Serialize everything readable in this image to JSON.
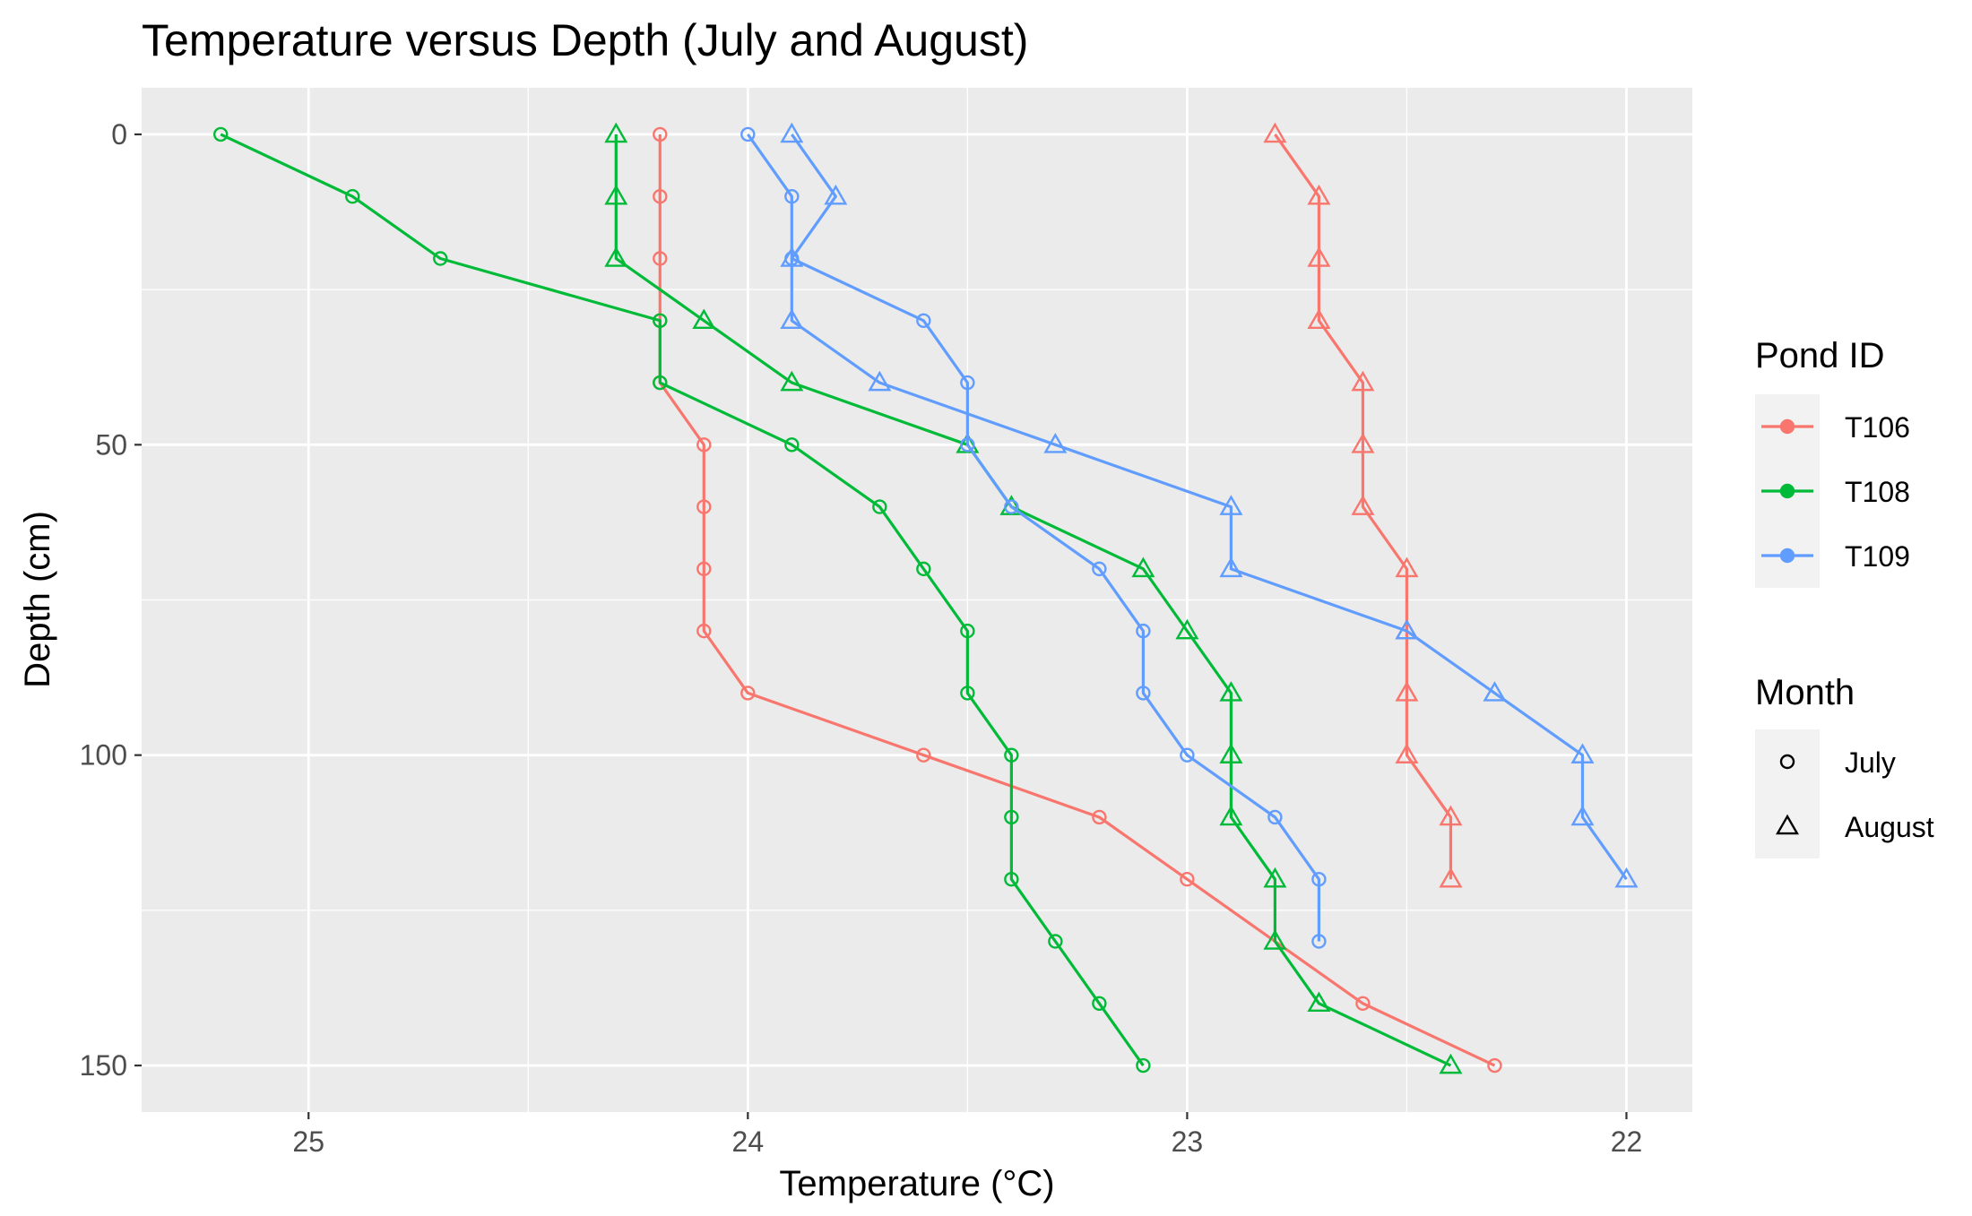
{
  "chart_data": {
    "type": "line",
    "title": "Temperature versus Depth (July and August)",
    "xlabel": "Temperature (°C)",
    "ylabel": "Depth (cm)",
    "x_reversed": true,
    "xlim": [
      25.38,
      21.85
    ],
    "ylim": [
      157.5,
      -7.5
    ],
    "x_ticks": [
      25,
      24,
      23,
      22
    ],
    "x_tick_labels": [
      "25",
      "24",
      "23",
      "22"
    ],
    "y_ticks": [
      0,
      50,
      100,
      150
    ],
    "y_tick_labels": [
      "0",
      "50",
      "100",
      "150"
    ],
    "grid": true,
    "legend": {
      "color_title": "Pond ID",
      "shape_title": "Month",
      "placement": "right",
      "ponds": [
        {
          "label": "T106",
          "color": "#F8766D"
        },
        {
          "label": "T108",
          "color": "#00BA38"
        },
        {
          "label": "T109",
          "color": "#619CFF"
        }
      ],
      "months": [
        {
          "label": "July",
          "shape": "circle"
        },
        {
          "label": "August",
          "shape": "triangle"
        }
      ]
    },
    "series": [
      {
        "name": "T106 July",
        "pond": "T106",
        "month": "July",
        "color": "#F8766D",
        "shape": "circle",
        "x": [
          24.2,
          24.2,
          24.2,
          24.2,
          24.2,
          24.1,
          24.1,
          24.1,
          24.1,
          24.0,
          23.6,
          23.2,
          23.0,
          22.6,
          22.3
        ],
        "y": [
          0,
          10,
          20,
          30,
          40,
          50,
          60,
          70,
          80,
          90,
          100,
          110,
          120,
          140,
          150
        ]
      },
      {
        "name": "T106 August",
        "pond": "T106",
        "month": "August",
        "color": "#F8766D",
        "shape": "triangle",
        "x": [
          22.8,
          22.7,
          22.7,
          22.7,
          22.6,
          22.6,
          22.6,
          22.5,
          22.5,
          22.5,
          22.5,
          22.4,
          22.4
        ],
        "y": [
          0,
          10,
          20,
          30,
          40,
          50,
          60,
          70,
          80,
          90,
          100,
          110,
          120
        ]
      },
      {
        "name": "T108 July",
        "pond": "T108",
        "month": "July",
        "color": "#00BA38",
        "shape": "circle",
        "x": [
          25.2,
          24.9,
          24.7,
          24.2,
          24.2,
          23.9,
          23.7,
          23.6,
          23.5,
          23.5,
          23.4,
          23.4,
          23.4,
          23.3,
          23.2,
          23.1
        ],
        "y": [
          0,
          10,
          20,
          30,
          40,
          50,
          60,
          70,
          80,
          90,
          100,
          110,
          120,
          130,
          140,
          150
        ]
      },
      {
        "name": "T108 August",
        "pond": "T108",
        "month": "August",
        "color": "#00BA38",
        "shape": "triangle",
        "x": [
          24.3,
          24.3,
          24.3,
          24.1,
          23.9,
          23.5,
          23.4,
          23.1,
          23.0,
          22.9,
          22.9,
          22.9,
          22.8,
          22.8,
          22.7,
          22.4
        ],
        "y": [
          0,
          10,
          20,
          30,
          40,
          50,
          60,
          70,
          80,
          90,
          100,
          110,
          120,
          130,
          140,
          150
        ]
      },
      {
        "name": "T109 July",
        "pond": "T109",
        "month": "July",
        "color": "#619CFF",
        "shape": "circle",
        "x": [
          24.0,
          23.9,
          23.9,
          23.6,
          23.5,
          23.5,
          23.4,
          23.2,
          23.1,
          23.1,
          23.0,
          22.8,
          22.7,
          22.7
        ],
        "y": [
          0,
          10,
          20,
          30,
          40,
          50,
          60,
          70,
          80,
          90,
          100,
          110,
          120,
          130
        ]
      },
      {
        "name": "T109 August",
        "pond": "T109",
        "month": "August",
        "color": "#619CFF",
        "shape": "triangle",
        "x": [
          23.9,
          23.8,
          23.9,
          23.9,
          23.7,
          23.3,
          22.9,
          22.9,
          22.5,
          22.3,
          22.1,
          22.1,
          22.0
        ],
        "y": [
          0,
          10,
          20,
          30,
          40,
          50,
          60,
          70,
          80,
          90,
          100,
          110,
          120
        ]
      }
    ]
  }
}
